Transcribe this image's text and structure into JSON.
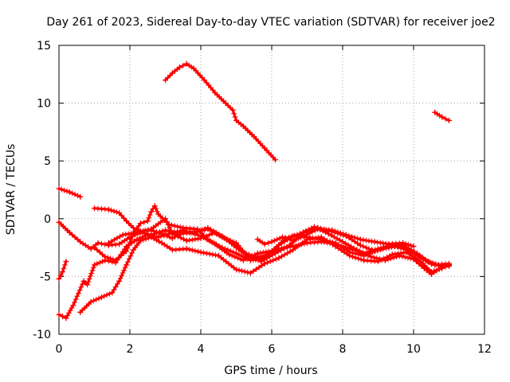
{
  "chart_data": {
    "type": "scatter",
    "title": "Day 261 of 2023, Sidereal Day-to-day VTEC variation (SDTVAR) for receiver joe2",
    "xlabel": "GPS time / hours",
    "ylabel": "SDTVAR / TECUs",
    "xlim": [
      0,
      12
    ],
    "ylim": [
      -10,
      15
    ],
    "xticks": [
      0,
      2,
      4,
      6,
      8,
      10,
      12
    ],
    "yticks": [
      -10,
      -5,
      0,
      5,
      10,
      15
    ],
    "grid": true,
    "marker": "+",
    "color": "#ff0000",
    "series": [
      {
        "name": "trace-1",
        "points": [
          [
            3.0,
            12.0
          ],
          [
            3.2,
            12.6
          ],
          [
            3.4,
            13.1
          ],
          [
            3.6,
            13.4
          ],
          [
            3.8,
            13.0
          ],
          [
            4.1,
            12.0
          ],
          [
            4.4,
            10.9
          ],
          [
            4.7,
            10.0
          ],
          [
            4.9,
            9.4
          ],
          [
            5.0,
            8.5
          ],
          [
            5.2,
            8.0
          ],
          [
            5.5,
            7.1
          ],
          [
            5.8,
            6.1
          ],
          [
            6.1,
            5.1
          ]
        ]
      },
      {
        "name": "trace-2",
        "points": [
          [
            10.6,
            9.2
          ],
          [
            10.8,
            8.8
          ],
          [
            11.0,
            8.5
          ]
        ]
      },
      {
        "name": "trace-3",
        "points": [
          [
            0.0,
            2.6
          ],
          [
            0.3,
            2.3
          ],
          [
            0.6,
            1.9
          ]
        ]
      },
      {
        "name": "trace-4",
        "points": [
          [
            0.0,
            -0.3
          ],
          [
            0.3,
            -1.2
          ],
          [
            0.6,
            -2.0
          ],
          [
            0.9,
            -2.6
          ],
          [
            1.1,
            -2.1
          ],
          [
            1.4,
            -2.3
          ],
          [
            1.7,
            -2.2
          ],
          [
            2.0,
            -1.6
          ],
          [
            2.3,
            -1.2
          ],
          [
            2.6,
            -1.4
          ],
          [
            3.0,
            -1.0
          ],
          [
            3.4,
            -1.3
          ],
          [
            3.8,
            -1.2
          ],
          [
            4.2,
            -0.8
          ],
          [
            4.6,
            -1.5
          ],
          [
            5.0,
            -2.5
          ],
          [
            5.4,
            -3.4
          ],
          [
            5.8,
            -3.2
          ],
          [
            6.2,
            -2.6
          ],
          [
            6.6,
            -2.4
          ],
          [
            7.0,
            -2.1
          ],
          [
            7.4,
            -2.0
          ],
          [
            7.8,
            -2.2
          ],
          [
            8.2,
            -2.6
          ],
          [
            8.6,
            -3.0
          ],
          [
            9.0,
            -2.6
          ],
          [
            9.4,
            -2.3
          ],
          [
            9.8,
            -2.7
          ],
          [
            10.2,
            -3.3
          ],
          [
            10.5,
            -3.9
          ],
          [
            10.8,
            -4.1
          ],
          [
            11.0,
            -4.0
          ]
        ]
      },
      {
        "name": "trace-5",
        "points": [
          [
            0.0,
            -8.3
          ],
          [
            0.2,
            -8.6
          ],
          [
            0.4,
            -7.5
          ],
          [
            0.7,
            -5.4
          ],
          [
            0.8,
            -5.7
          ],
          [
            1.0,
            -4.0
          ],
          [
            1.3,
            -3.6
          ],
          [
            1.6,
            -3.8
          ],
          [
            1.9,
            -2.4
          ],
          [
            2.2,
            -1.8
          ],
          [
            2.5,
            -1.4
          ],
          [
            2.8,
            -1.6
          ],
          [
            3.1,
            -1.3
          ],
          [
            3.5,
            -1.0
          ],
          [
            4.0,
            -1.5
          ],
          [
            4.4,
            -2.2
          ],
          [
            4.8,
            -3.1
          ],
          [
            5.2,
            -3.6
          ],
          [
            5.6,
            -3.0
          ],
          [
            6.0,
            -2.8
          ],
          [
            6.4,
            -1.7
          ],
          [
            6.8,
            -1.3
          ],
          [
            7.2,
            -0.7
          ],
          [
            7.6,
            -1.3
          ],
          [
            8.0,
            -2.0
          ],
          [
            8.4,
            -2.7
          ],
          [
            8.8,
            -3.3
          ],
          [
            9.2,
            -3.6
          ],
          [
            9.6,
            -3.2
          ],
          [
            10.0,
            -3.5
          ],
          [
            10.3,
            -4.3
          ],
          [
            10.5,
            -4.8
          ],
          [
            10.8,
            -4.2
          ],
          [
            11.0,
            -4.1
          ]
        ]
      },
      {
        "name": "trace-6",
        "points": [
          [
            0.6,
            -8.1
          ],
          [
            0.9,
            -7.2
          ],
          [
            1.2,
            -6.8
          ],
          [
            1.5,
            -6.4
          ],
          [
            1.7,
            -5.4
          ],
          [
            1.9,
            -4.0
          ],
          [
            2.1,
            -2.7
          ],
          [
            2.3,
            -1.9
          ],
          [
            2.6,
            -1.6
          ],
          [
            2.9,
            -2.1
          ],
          [
            3.2,
            -2.7
          ],
          [
            3.6,
            -2.6
          ],
          [
            4.0,
            -2.9
          ],
          [
            4.5,
            -3.2
          ],
          [
            5.0,
            -4.4
          ],
          [
            5.4,
            -4.7
          ],
          [
            5.8,
            -3.9
          ],
          [
            6.2,
            -3.4
          ],
          [
            6.6,
            -2.7
          ],
          [
            7.0,
            -1.8
          ],
          [
            7.4,
            -1.6
          ],
          [
            7.8,
            -2.4
          ],
          [
            8.2,
            -3.2
          ],
          [
            8.6,
            -3.6
          ],
          [
            9.0,
            -3.7
          ],
          [
            9.4,
            -3.1
          ],
          [
            9.8,
            -2.9
          ],
          [
            10.2,
            -3.7
          ],
          [
            10.5,
            -4.6
          ],
          [
            10.8,
            -4.3
          ],
          [
            11.0,
            -4.0
          ]
        ]
      },
      {
        "name": "trace-7",
        "points": [
          [
            0.0,
            -5.2
          ],
          [
            0.1,
            -4.6
          ],
          [
            0.2,
            -3.7
          ]
        ]
      },
      {
        "name": "trace-8",
        "points": [
          [
            1.0,
            0.9
          ],
          [
            1.4,
            0.8
          ],
          [
            1.7,
            0.5
          ],
          [
            1.9,
            -0.2
          ],
          [
            2.1,
            -0.8
          ],
          [
            2.3,
            -1.1
          ],
          [
            2.6,
            -1.0
          ],
          [
            2.9,
            -1.3
          ],
          [
            3.2,
            -1.7
          ],
          [
            3.5,
            -1.2
          ],
          [
            3.9,
            -1.1
          ],
          [
            4.2,
            -0.9
          ],
          [
            4.6,
            -1.6
          ],
          [
            5.0,
            -2.1
          ],
          [
            5.3,
            -3.2
          ],
          [
            5.7,
            -3.7
          ],
          [
            6.1,
            -3.0
          ],
          [
            6.5,
            -2.3
          ],
          [
            6.9,
            -1.2
          ],
          [
            7.3,
            -0.8
          ],
          [
            7.7,
            -1.1
          ],
          [
            8.1,
            -1.5
          ],
          [
            8.5,
            -2.3
          ],
          [
            8.9,
            -2.8
          ],
          [
            9.3,
            -2.5
          ],
          [
            9.7,
            -2.3
          ],
          [
            10.1,
            -3.0
          ],
          [
            10.4,
            -3.7
          ],
          [
            10.7,
            -4.0
          ],
          [
            11.0,
            -4.0
          ]
        ]
      },
      {
        "name": "trace-9",
        "points": [
          [
            1.0,
            -2.5
          ],
          [
            1.3,
            -3.3
          ],
          [
            1.6,
            -3.6
          ],
          [
            1.9,
            -2.8
          ],
          [
            2.1,
            -1.3
          ],
          [
            2.3,
            -0.4
          ],
          [
            2.5,
            -0.2
          ],
          [
            2.6,
            0.6
          ],
          [
            2.7,
            1.1
          ],
          [
            2.8,
            0.4
          ],
          [
            3.1,
            -0.5
          ],
          [
            3.5,
            -0.8
          ],
          [
            3.9,
            -0.9
          ],
          [
            4.2,
            -1.8
          ],
          [
            4.6,
            -2.5
          ],
          [
            5.0,
            -3.0
          ],
          [
            5.4,
            -3.6
          ],
          [
            5.8,
            -3.4
          ],
          [
            6.2,
            -2.3
          ],
          [
            6.6,
            -1.5
          ],
          [
            7.0,
            -1.6
          ],
          [
            7.4,
            -1.8
          ],
          [
            7.8,
            -2.1
          ],
          [
            8.2,
            -2.9
          ],
          [
            8.6,
            -3.2
          ],
          [
            9.0,
            -2.7
          ],
          [
            9.4,
            -2.2
          ],
          [
            9.8,
            -2.5
          ],
          [
            10.2,
            -3.4
          ],
          [
            10.6,
            -4.0
          ],
          [
            11.0,
            -3.9
          ]
        ]
      },
      {
        "name": "trace-10",
        "points": [
          [
            5.6,
            -1.8
          ],
          [
            5.8,
            -2.2
          ],
          [
            6.0,
            -2.0
          ],
          [
            6.3,
            -1.6
          ],
          [
            6.6,
            -1.9
          ],
          [
            6.9,
            -1.5
          ],
          [
            7.3,
            -0.9
          ],
          [
            7.7,
            -1.0
          ],
          [
            8.1,
            -1.4
          ],
          [
            8.5,
            -1.8
          ],
          [
            8.9,
            -2.0
          ],
          [
            9.3,
            -2.2
          ],
          [
            9.7,
            -2.1
          ],
          [
            10.0,
            -2.4
          ]
        ]
      },
      {
        "name": "trace-11",
        "points": [
          [
            1.4,
            -2.1
          ],
          [
            1.8,
            -1.4
          ],
          [
            2.2,
            -1.2
          ],
          [
            2.6,
            -0.9
          ],
          [
            3.0,
            0.0
          ],
          [
            3.2,
            -1.3
          ],
          [
            3.6,
            -1.9
          ],
          [
            4.0,
            -1.7
          ],
          [
            4.4,
            -1.2
          ],
          [
            4.8,
            -1.9
          ],
          [
            5.2,
            -2.9
          ],
          [
            5.6,
            -3.4
          ]
        ]
      }
    ]
  }
}
